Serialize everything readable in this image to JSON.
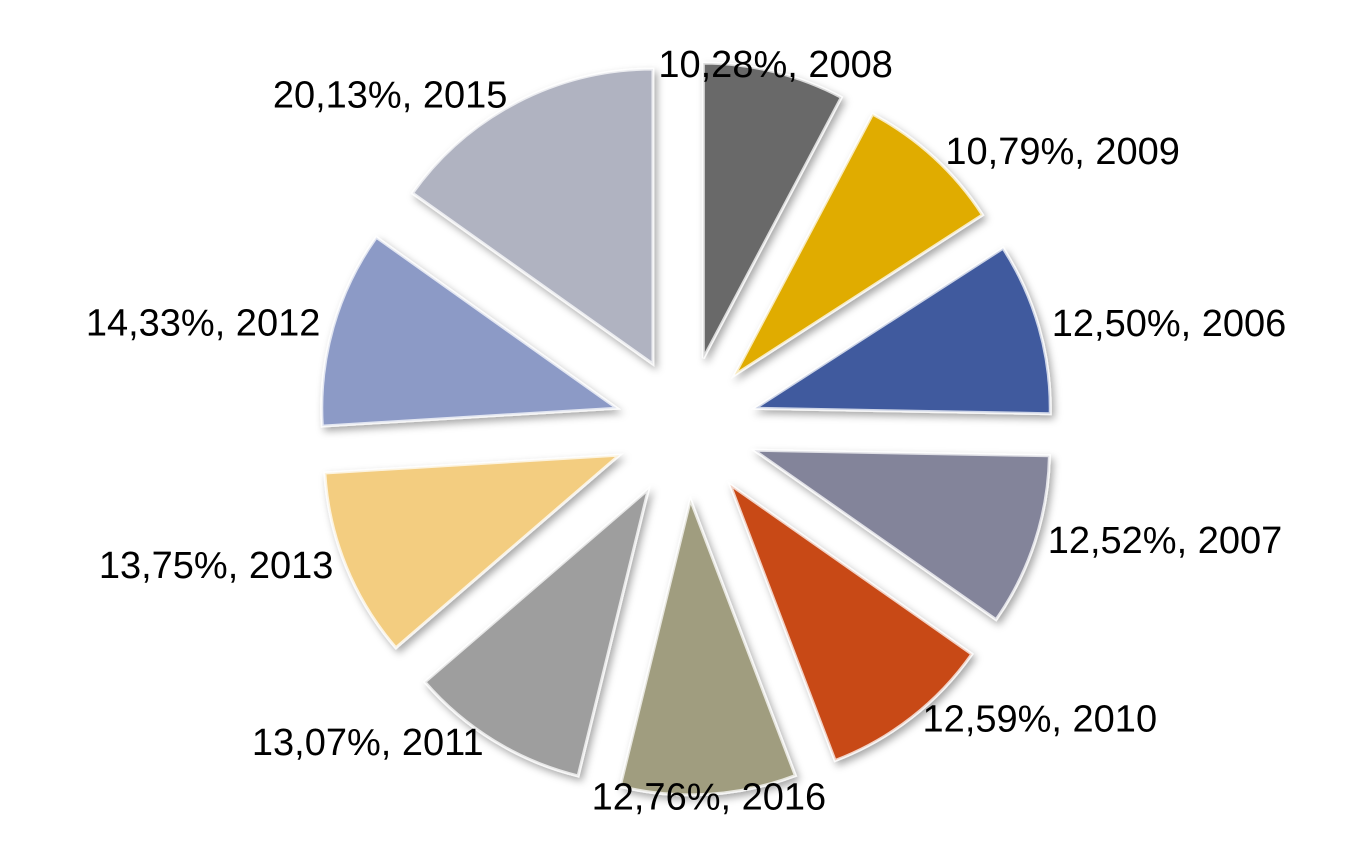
{
  "chart_data": {
    "type": "pie",
    "values": [
      10.28,
      10.79,
      12.5,
      12.52,
      12.59,
      12.76,
      13.07,
      13.75,
      14.33,
      20.13
    ],
    "value_labels": [
      "10,28%, 2008",
      "10,79%, 2009",
      "12,50%, 2006",
      "12,52%, 2007",
      "12,59%, 2010",
      "12,76%, 2016",
      "13,07%, 2011",
      "13,75%, 2013",
      "14,33%, 2012",
      "20,13%, 2015"
    ],
    "colors": [
      "#696969",
      "#e0ac00",
      "#3f5a9e",
      "#83849a",
      "#c84a18",
      "#a09d7f",
      "#9e9e9e",
      "#f3cd80",
      "#8c9ac6",
      "#b0b3c1"
    ]
  }
}
